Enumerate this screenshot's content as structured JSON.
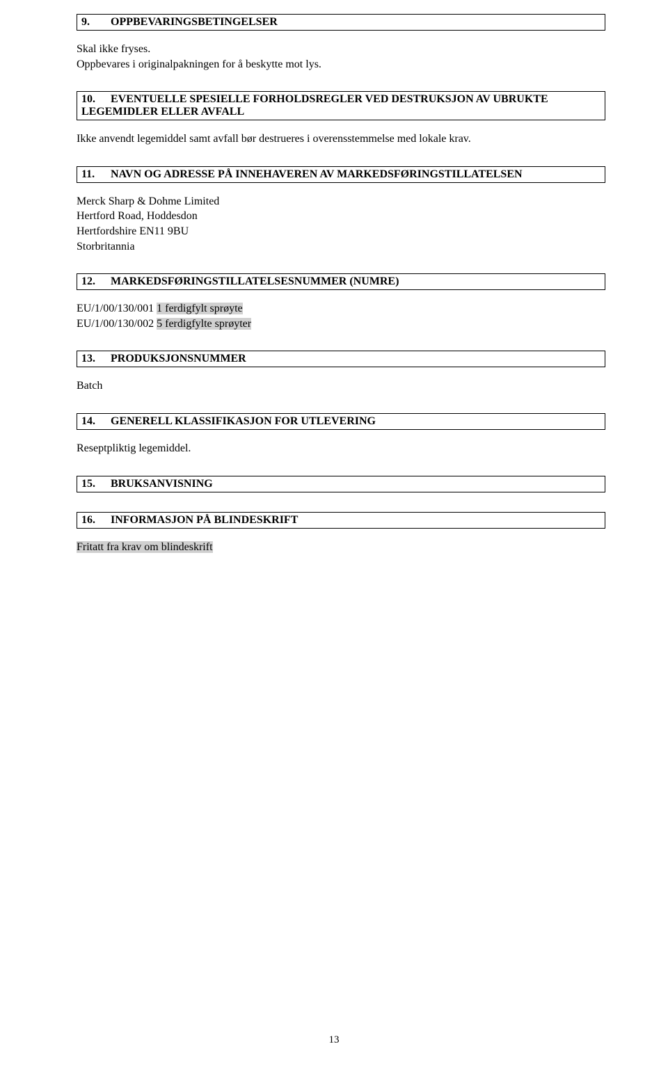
{
  "colors": {
    "text": "#000000",
    "background": "#ffffff",
    "border": "#000000",
    "highlight": "#d0d0d0"
  },
  "typography": {
    "font_family": "Times New Roman",
    "body_fontsize_pt": 12,
    "title_weight": "bold"
  },
  "sections": {
    "s9": {
      "num": "9.",
      "title": "OPPBEVARINGSBETINGELSER",
      "body": [
        "Skal ikke fryses.",
        "Oppbevares i originalpakningen for å beskytte mot lys."
      ]
    },
    "s10": {
      "num": "10.",
      "title": "EVENTUELLE SPESIELLE FORHOLDSREGLER VED DESTRUKSJON AV UBRUKTE LEGEMIDLER ELLER AVFALL",
      "body": [
        "Ikke anvendt legemiddel samt avfall bør destrueres i overensstemmelse med lokale krav."
      ]
    },
    "s11": {
      "num": "11.",
      "title": "NAVN OG ADRESSE PÅ INNEHAVEREN AV MARKEDSFØRINGSTILLATELSEN",
      "address": [
        "Merck Sharp & Dohme Limited",
        "Hertford Road, Hoddesdon",
        "Hertfordshire EN11 9BU",
        "Storbritannia"
      ]
    },
    "s12": {
      "num": "12.",
      "title": "MARKEDSFØRINGSTILLATELSESNUMMER (NUMRE)",
      "lines": [
        {
          "prefix": "EU/1/00/130/001 ",
          "hl": "1 ferdigfylt sprøyte"
        },
        {
          "prefix": "EU/1/00/130/002 ",
          "hl": "5 ferdigfylte sprøyter"
        }
      ]
    },
    "s13": {
      "num": "13.",
      "title": "PRODUKSJONSNUMMER",
      "body": [
        "Batch"
      ]
    },
    "s14": {
      "num": "14.",
      "title": "GENERELL KLASSIFIKASJON FOR UTLEVERING",
      "body": [
        "Reseptpliktig legemiddel."
      ]
    },
    "s15": {
      "num": "15.",
      "title": "BRUKSANVISNING"
    },
    "s16": {
      "num": "16.",
      "title": "INFORMASJON PÅ BLINDESKRIFT",
      "hl_body": "Fritatt fra krav om blindeskrift"
    }
  },
  "page_number": "13"
}
